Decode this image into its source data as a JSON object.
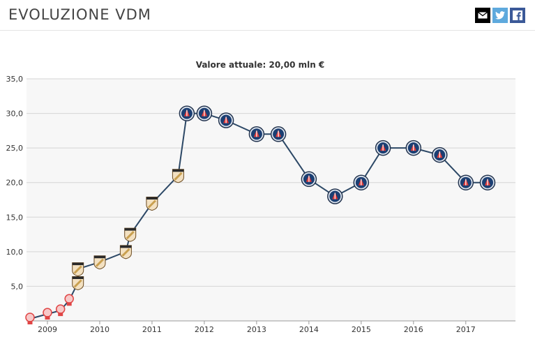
{
  "header": {
    "title": "EVOLUZIONE VDM",
    "share": [
      {
        "name": "email-share-button",
        "icon": "envelope-icon"
      },
      {
        "name": "twitter-share-button",
        "icon": "twitter-icon"
      },
      {
        "name": "facebook-share-button",
        "icon": "facebook-icon"
      }
    ]
  },
  "chart_data": {
    "type": "line",
    "title": "Valore attuale: 20,00 mln €",
    "xlabel": "",
    "ylabel": "",
    "x_ticks": [
      "2009",
      "2010",
      "2011",
      "2012",
      "2013",
      "2014",
      "2015",
      "2016",
      "2017"
    ],
    "y_ticks": [
      "5,0",
      "10,0",
      "15,0",
      "20,0",
      "25,0",
      "30,0",
      "35,0"
    ],
    "ylim": [
      0,
      35
    ],
    "grid": true,
    "line_color": "#2c4866",
    "series": [
      {
        "values": [
          {
            "date": "2008-09",
            "value": 0.3,
            "club": "red"
          },
          {
            "date": "2009-01",
            "value": 1.0,
            "club": "red"
          },
          {
            "date": "2009-04",
            "value": 1.5,
            "club": "red"
          },
          {
            "date": "2009-06",
            "value": 3.0,
            "club": "red"
          },
          {
            "date": "2009-08",
            "value": 5.5,
            "club": "shield"
          },
          {
            "date": "2009-08",
            "value": 7.5,
            "club": "shield"
          },
          {
            "date": "2010-01",
            "value": 8.5,
            "club": "shield"
          },
          {
            "date": "2010-07",
            "value": 10.0,
            "club": "shield"
          },
          {
            "date": "2010-08",
            "value": 12.5,
            "club": "shield"
          },
          {
            "date": "2011-01",
            "value": 17.0,
            "club": "shield"
          },
          {
            "date": "2011-07",
            "value": 21.0,
            "club": "shield"
          },
          {
            "date": "2011-09",
            "value": 30.0,
            "club": "psg"
          },
          {
            "date": "2012-01",
            "value": 30.0,
            "club": "psg"
          },
          {
            "date": "2012-06",
            "value": 29.0,
            "club": "psg"
          },
          {
            "date": "2013-01",
            "value": 27.0,
            "club": "psg"
          },
          {
            "date": "2013-06",
            "value": 27.0,
            "club": "psg"
          },
          {
            "date": "2014-01",
            "value": 20.5,
            "club": "psg"
          },
          {
            "date": "2014-07",
            "value": 18.0,
            "club": "psg"
          },
          {
            "date": "2015-01",
            "value": 20.0,
            "club": "psg"
          },
          {
            "date": "2015-06",
            "value": 25.0,
            "club": "psg"
          },
          {
            "date": "2016-01",
            "value": 25.0,
            "club": "psg"
          },
          {
            "date": "2016-07",
            "value": 24.0,
            "club": "psg"
          },
          {
            "date": "2017-01",
            "value": 20.0,
            "club": "psg"
          },
          {
            "date": "2017-06",
            "value": 20.0,
            "club": "psg"
          }
        ]
      }
    ],
    "marker_colors": {
      "red": "#e04545",
      "shield": "#c9a050",
      "psg": "#1b3f73"
    }
  }
}
